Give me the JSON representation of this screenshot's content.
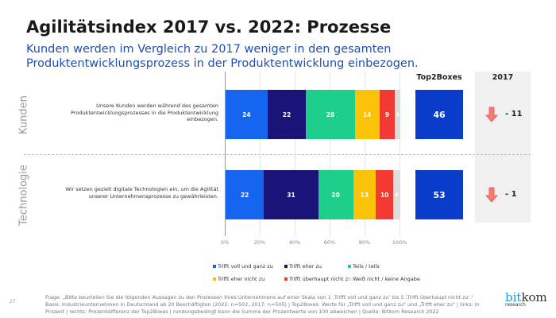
{
  "title": "Agilitätsindex 2017 vs. 2022: Prozesse",
  "subtitle": "Kunden werden im Vergleich zu 2017 weniger in den gesamten Produktentwicklungsprozess in der Produktentwicklung einbezogen.",
  "chart_data": {
    "type": "bar",
    "orientation": "horizontal",
    "stacked": true,
    "xlim": [
      0,
      100
    ],
    "x_ticks": [
      "0%",
      "20%",
      "40%",
      "60%",
      "80%",
      "100%"
    ],
    "series_names": [
      "Trifft voll und ganz zu",
      "Trifft eher zu",
      "Teils / teils",
      "Trifft eher nicht zu",
      "Trifft überhaupt nicht zu",
      "Weiß nicht / keine Angabe"
    ],
    "colors": [
      "#1565f0",
      "#1a1478",
      "#1ecf8c",
      "#fbc20a",
      "#f23a32",
      "#dcdcdc"
    ],
    "legend_position": "bottom",
    "rows": [
      {
        "category": "Kunden",
        "statement": "Unsere Kunden werden während des gesamten Produktentwicklungsprozesses in die Produktentwicklung einbezogen.",
        "values": [
          24,
          22,
          28,
          14,
          9,
          3
        ],
        "top2boxes": 46,
        "diff_2017": "- 11"
      },
      {
        "category": "Technologie",
        "statement": "Wir setzen gezielt digitale Technologien ein, um die Agilität unserer Unternehmensprozesse zu gewährleisten.",
        "values": [
          22,
          31,
          20,
          13,
          10,
          4
        ],
        "top2boxes": 53,
        "diff_2017": "- 1"
      }
    ],
    "top2_header": "Top2Boxes",
    "diff_header": "2017"
  },
  "footer": {
    "page": "27",
    "text": "Frage: „Bitte beurteilen Sie die folgenden Aussagen zu den Prozessen Ihres Unternehmens auf einer Skala von 1 ‚Trifft voll und ganz zu' bis 5 ‚Trifft überhaupt nicht zu'.\" Basis: Industrieunternehmen in Deutschland ab 20 Beschäftigten (2022: n=502, 2017: n=505) | Top2Boxes: Werte für „Trifft voll und ganz zu\" und „Trifft eher zu\" | links: in Prozent | rechts: Prozentdifferenz der Top2Boxes | rundungsbedingt kann die Summe der Prozentwerte von 100 abweichen | Quelle: Bitkom Research 2022",
    "logo_main": "bitkom",
    "logo_sub": "research"
  }
}
